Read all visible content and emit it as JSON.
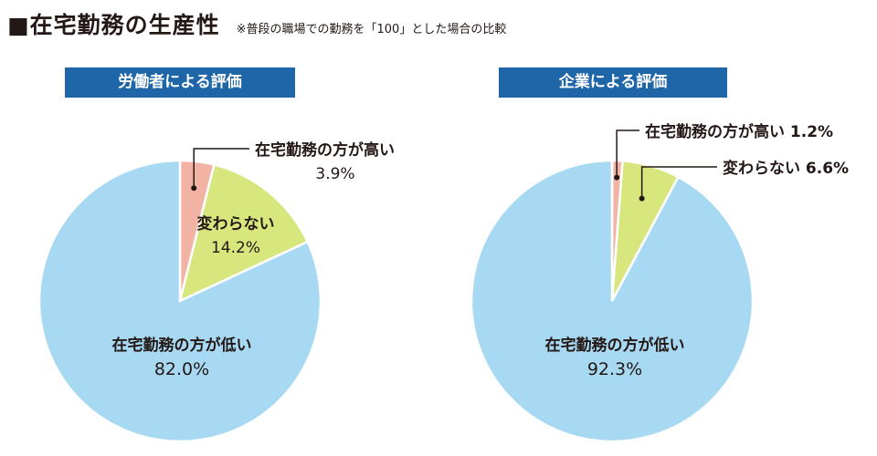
{
  "header": {
    "title": "■在宅勤務の生産性",
    "note": "※普段の職場での勤務を「100」とした場合の比較"
  },
  "chart_data": [
    {
      "type": "pie",
      "title": "労働者による評価",
      "slices": [
        {
          "label": "在宅勤務の方が高い",
          "value": 3.9,
          "value_label": "3.9%",
          "color": "#f3b3a4"
        },
        {
          "label": "変わらない",
          "value": 14.2,
          "value_label": "14.2%",
          "color": "#d8e67e"
        },
        {
          "label": "在宅勤務の方が低い",
          "value": 82.0,
          "value_label": "82.0%",
          "color": "#a8d9f2"
        }
      ]
    },
    {
      "type": "pie",
      "title": "企業による評価",
      "slices": [
        {
          "label": "在宅勤務の方が高い",
          "value": 1.2,
          "value_label": "1.2%",
          "color": "#f3b3a4"
        },
        {
          "label": "変わらない",
          "value": 6.6,
          "value_label": "6.6%",
          "color": "#d8e67e"
        },
        {
          "label": "在宅勤務の方が低い",
          "value": 92.3,
          "value_label": "92.3%",
          "color": "#a8d9f2"
        }
      ]
    }
  ]
}
